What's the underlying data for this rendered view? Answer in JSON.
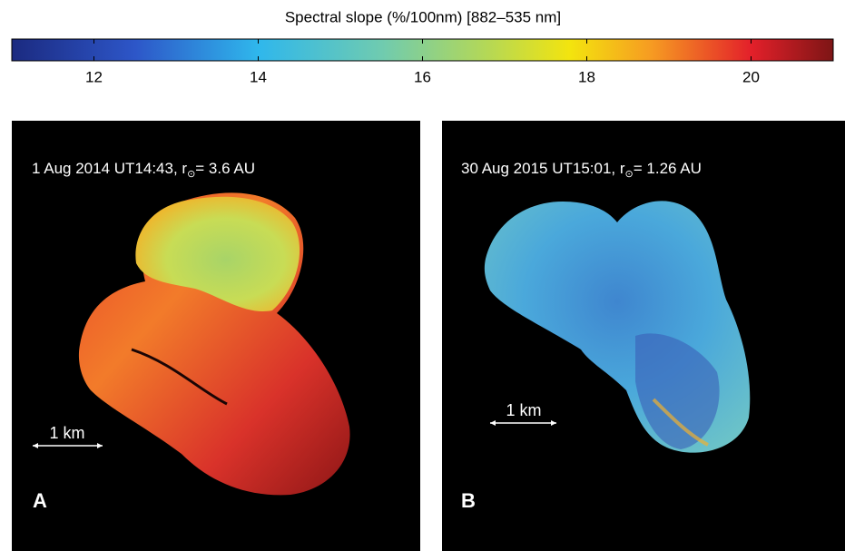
{
  "colorbar": {
    "label": "Spectral slope (%/100nm) [882–535 nm]",
    "range": [
      11,
      21
    ],
    "ticks": [
      12,
      14,
      16,
      18,
      20
    ]
  },
  "panels": [
    {
      "letter": "A",
      "caption": "1 Aug 2014 UT14:43, r",
      "subscript": "⊙",
      "caption_end": "= 3.6 AU",
      "scale_bar": "1 km"
    },
    {
      "letter": "B",
      "caption": "30 Aug 2015 UT15:01, r",
      "subscript": "⊙",
      "caption_end": "= 1.26 AU",
      "scale_bar": "1 km"
    }
  ]
}
